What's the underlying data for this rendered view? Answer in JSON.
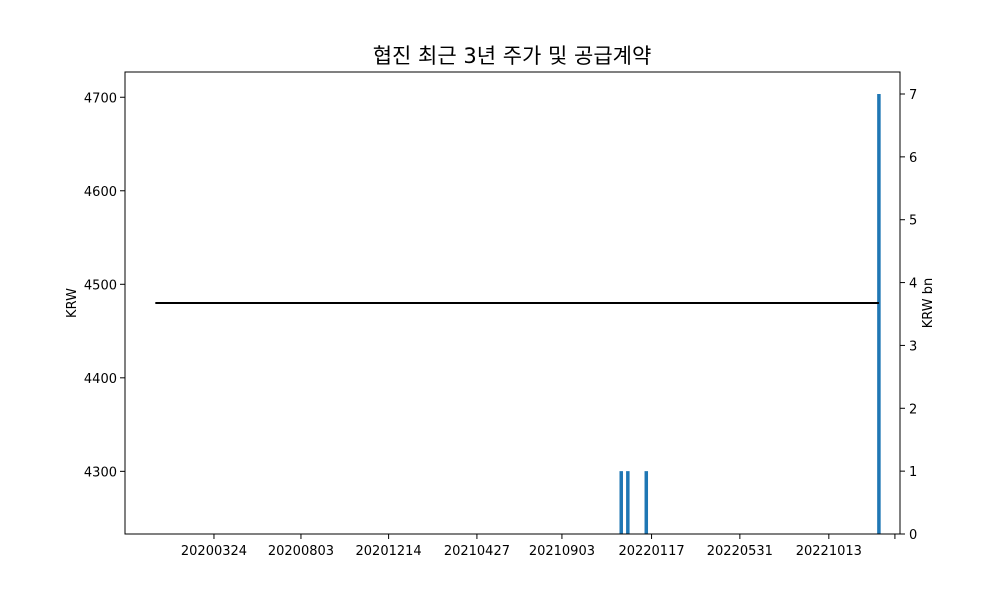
{
  "chart_data": {
    "type": "bar+line",
    "title": "협진 최근 3년 주가 및 공급계약",
    "ylabel_left": "KRW",
    "ylabel_right": "KRW bn",
    "x_ticks": [
      "20200324",
      "20200803",
      "20201214",
      "20210427",
      "20210903",
      "20220117",
      "20220531",
      "20221013"
    ],
    "left_axis": {
      "ylim": [
        4233,
        4727
      ],
      "ticks": [
        "4300",
        "4400",
        "4500",
        "4600",
        "4700"
      ]
    },
    "right_axis": {
      "ylim": [
        0,
        7.35
      ],
      "ticks": [
        "0",
        "1",
        "2",
        "3",
        "4",
        "5",
        "6",
        "7"
      ]
    },
    "line_series": {
      "axis": "left",
      "color": "#000000",
      "points": [
        {
          "date": "2019-12-26",
          "value": 4480
        },
        {
          "date": "2022-12-28",
          "value": 4480
        }
      ]
    },
    "bar_series": {
      "axis": "right",
      "color": "#1f77b4",
      "bars": [
        {
          "date": "2021-12-02",
          "value": 1
        },
        {
          "date": "2021-12-12",
          "value": 1
        },
        {
          "date": "2022-01-09",
          "value": 1
        },
        {
          "date": "2022-12-28",
          "value": 7
        }
      ]
    },
    "grid": false,
    "legend": "none"
  }
}
